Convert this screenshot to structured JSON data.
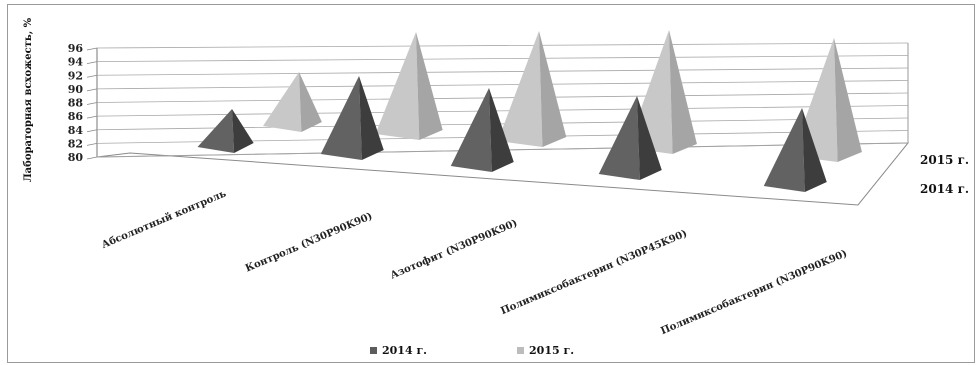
{
  "chart_data": {
    "type": "bar",
    "bar_shape": "pyramid-3d",
    "ylabel": "Лабораторная всхожесть, %",
    "ylim": [
      80,
      96
    ],
    "yticks": [
      "80",
      "82",
      "84",
      "86",
      "88",
      "90",
      "92",
      "94",
      "96"
    ],
    "grid": true,
    "categories": [
      "Абсолютный контроль",
      "Контроль (N30P90K90)",
      "Азотофит (N30P90K90)",
      "Полимиксобактерин (N30P45K90)",
      "Полимиксобактерин (N30P90K90)"
    ],
    "series": [
      {
        "name": "2014 г.",
        "values": [
          84,
          89,
          89,
          89,
          89
        ],
        "color": "#5c5c5c"
      },
      {
        "name": "2015 г.",
        "values": [
          86,
          92,
          93,
          94,
          94
        ],
        "color": "#bcbcbc"
      }
    ],
    "legend_position": "bottom"
  }
}
